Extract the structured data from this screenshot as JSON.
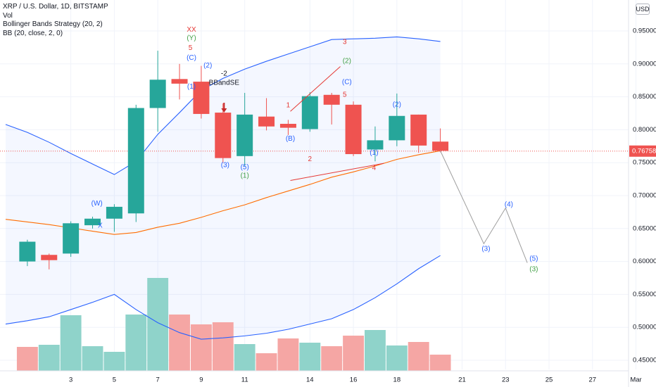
{
  "legend": {
    "symbol": "XRP / U.S. Dollar, 1D, BITSTAMP",
    "vol": "Vol",
    "strategy": "Bollinger Bands Strategy (20, 2)",
    "bb": "BB (20, close, 2, 0)"
  },
  "currency_button": "USD",
  "colors": {
    "up": "#26a69a",
    "down": "#ef5350",
    "vol_up": "#8fd3ca",
    "vol_down": "#f5a6a4",
    "band": "#2962ff",
    "basis": "#ff6d00",
    "wave_blue": "#2962ff",
    "wave_green": "#43a047",
    "wave_red": "#e53935",
    "projection": "#9e9e9e"
  },
  "chart_data": {
    "type": "candlestick",
    "y_range": [
      0.44,
      0.98
    ],
    "y_ticks": [
      "0.95000",
      "0.90000",
      "0.85000",
      "0.80000",
      "0.75000",
      "0.70000",
      "0.65000",
      "0.60000",
      "0.55000",
      "0.50000",
      "0.45000"
    ],
    "y_tick_values": [
      0.95,
      0.9,
      0.85,
      0.8,
      0.75,
      0.7,
      0.65,
      0.6,
      0.55,
      0.5,
      0.45
    ],
    "x_ticks": [
      {
        "label": "3",
        "day": 3
      },
      {
        "label": "5",
        "day": 5
      },
      {
        "label": "7",
        "day": 7
      },
      {
        "label": "9",
        "day": 9
      },
      {
        "label": "11",
        "day": 11
      },
      {
        "label": "14",
        "day": 14
      },
      {
        "label": "16",
        "day": 16
      },
      {
        "label": "18",
        "day": 18
      },
      {
        "label": "21",
        "day": 21
      },
      {
        "label": "23",
        "day": 23
      },
      {
        "label": "25",
        "day": 25
      },
      {
        "label": "27",
        "day": 27
      },
      {
        "label": "Mar",
        "day": 29
      }
    ],
    "last_price": 0.76758,
    "last_price_label": "0.76758",
    "candles": [
      {
        "day": 1,
        "o": 0.6,
        "h": 0.633,
        "l": 0.593,
        "c": 0.63
      },
      {
        "day": 2,
        "o": 0.61,
        "h": 0.612,
        "l": 0.588,
        "c": 0.602
      },
      {
        "day": 3,
        "o": 0.612,
        "h": 0.661,
        "l": 0.607,
        "c": 0.658
      },
      {
        "day": 4,
        "o": 0.655,
        "h": 0.668,
        "l": 0.65,
        "c": 0.665
      },
      {
        "day": 5,
        "o": 0.665,
        "h": 0.687,
        "l": 0.645,
        "c": 0.683
      },
      {
        "day": 6,
        "o": 0.673,
        "h": 0.838,
        "l": 0.66,
        "c": 0.833
      },
      {
        "day": 7,
        "o": 0.833,
        "h": 0.92,
        "l": 0.797,
        "c": 0.876
      },
      {
        "day": 8,
        "o": 0.877,
        "h": 0.9,
        "l": 0.846,
        "c": 0.87
      },
      {
        "day": 9,
        "o": 0.873,
        "h": 0.897,
        "l": 0.817,
        "c": 0.824
      },
      {
        "day": 10,
        "o": 0.826,
        "h": 0.84,
        "l": 0.75,
        "c": 0.757
      },
      {
        "day": 11,
        "o": 0.76,
        "h": 0.856,
        "l": 0.745,
        "c": 0.823
      },
      {
        "day": 12,
        "o": 0.82,
        "h": 0.848,
        "l": 0.799,
        "c": 0.805
      },
      {
        "day": 13,
        "o": 0.809,
        "h": 0.815,
        "l": 0.792,
        "c": 0.803
      },
      {
        "day": 14,
        "o": 0.801,
        "h": 0.857,
        "l": 0.797,
        "c": 0.851
      },
      {
        "day": 15,
        "o": 0.853,
        "h": 0.856,
        "l": 0.808,
        "c": 0.838
      },
      {
        "day": 16,
        "o": 0.838,
        "h": 0.843,
        "l": 0.76,
        "c": 0.763
      },
      {
        "day": 17,
        "o": 0.77,
        "h": 0.805,
        "l": 0.752,
        "c": 0.784
      },
      {
        "day": 18,
        "o": 0.784,
        "h": 0.855,
        "l": 0.775,
        "c": 0.821
      },
      {
        "day": 19,
        "o": 0.823,
        "h": 0.823,
        "l": 0.765,
        "c": 0.776
      },
      {
        "day": 20,
        "o": 0.782,
        "h": 0.802,
        "l": 0.766,
        "c": 0.768
      }
    ],
    "volume": [
      {
        "day": 1,
        "v": 34,
        "dir": "down"
      },
      {
        "day": 2,
        "v": 37,
        "dir": "up"
      },
      {
        "day": 3,
        "v": 79,
        "dir": "up"
      },
      {
        "day": 4,
        "v": 35,
        "dir": "up"
      },
      {
        "day": 5,
        "v": 27,
        "dir": "up"
      },
      {
        "day": 6,
        "v": 80,
        "dir": "up"
      },
      {
        "day": 7,
        "v": 132,
        "dir": "up"
      },
      {
        "day": 8,
        "v": 80,
        "dir": "down"
      },
      {
        "day": 9,
        "v": 66,
        "dir": "down"
      },
      {
        "day": 10,
        "v": 69,
        "dir": "down"
      },
      {
        "day": 11,
        "v": 38,
        "dir": "up"
      },
      {
        "day": 12,
        "v": 25,
        "dir": "down"
      },
      {
        "day": 13,
        "v": 46,
        "dir": "down"
      },
      {
        "day": 14,
        "v": 40,
        "dir": "up"
      },
      {
        "day": 15,
        "v": 35,
        "dir": "down"
      },
      {
        "day": 16,
        "v": 50,
        "dir": "down"
      },
      {
        "day": 17,
        "v": 58,
        "dir": "up"
      },
      {
        "day": 18,
        "v": 36,
        "dir": "up"
      },
      {
        "day": 19,
        "v": 41,
        "dir": "down"
      },
      {
        "day": 20,
        "v": 23,
        "dir": "down"
      }
    ],
    "bb_upper": [
      {
        "day": 0,
        "y": 0.808
      },
      {
        "day": 1,
        "y": 0.796
      },
      {
        "day": 2,
        "y": 0.781
      },
      {
        "day": 3,
        "y": 0.764
      },
      {
        "day": 4,
        "y": 0.748
      },
      {
        "day": 5,
        "y": 0.732
      },
      {
        "day": 6,
        "y": 0.752
      },
      {
        "day": 7,
        "y": 0.793
      },
      {
        "day": 8,
        "y": 0.826
      },
      {
        "day": 9,
        "y": 0.86
      },
      {
        "day": 10,
        "y": 0.878
      },
      {
        "day": 11,
        "y": 0.892
      },
      {
        "day": 12,
        "y": 0.904
      },
      {
        "day": 13,
        "y": 0.915
      },
      {
        "day": 14,
        "y": 0.926
      },
      {
        "day": 15,
        "y": 0.937
      },
      {
        "day": 16,
        "y": 0.938
      },
      {
        "day": 17,
        "y": 0.939
      },
      {
        "day": 18,
        "y": 0.941
      },
      {
        "day": 19,
        "y": 0.938
      },
      {
        "day": 20,
        "y": 0.934
      }
    ],
    "bb_basis": [
      {
        "day": 0,
        "y": 0.664
      },
      {
        "day": 1,
        "y": 0.66
      },
      {
        "day": 2,
        "y": 0.656
      },
      {
        "day": 3,
        "y": 0.651
      },
      {
        "day": 4,
        "y": 0.646
      },
      {
        "day": 5,
        "y": 0.641
      },
      {
        "day": 6,
        "y": 0.644
      },
      {
        "day": 7,
        "y": 0.652
      },
      {
        "day": 8,
        "y": 0.658
      },
      {
        "day": 9,
        "y": 0.667
      },
      {
        "day": 10,
        "y": 0.677
      },
      {
        "day": 11,
        "y": 0.686
      },
      {
        "day": 12,
        "y": 0.697
      },
      {
        "day": 13,
        "y": 0.707
      },
      {
        "day": 14,
        "y": 0.717
      },
      {
        "day": 15,
        "y": 0.728
      },
      {
        "day": 16,
        "y": 0.736
      },
      {
        "day": 17,
        "y": 0.745
      },
      {
        "day": 18,
        "y": 0.755
      },
      {
        "day": 19,
        "y": 0.762
      },
      {
        "day": 20,
        "y": 0.768
      }
    ],
    "bb_lower": [
      {
        "day": 0,
        "y": 0.505
      },
      {
        "day": 1,
        "y": 0.51
      },
      {
        "day": 2,
        "y": 0.516
      },
      {
        "day": 3,
        "y": 0.527
      },
      {
        "day": 4,
        "y": 0.538
      },
      {
        "day": 5,
        "y": 0.55
      },
      {
        "day": 6,
        "y": 0.527
      },
      {
        "day": 7,
        "y": 0.507
      },
      {
        "day": 8,
        "y": 0.492
      },
      {
        "day": 9,
        "y": 0.482
      },
      {
        "day": 10,
        "y": 0.484
      },
      {
        "day": 11,
        "y": 0.487
      },
      {
        "day": 12,
        "y": 0.491
      },
      {
        "day": 13,
        "y": 0.497
      },
      {
        "day": 14,
        "y": 0.505
      },
      {
        "day": 15,
        "y": 0.513
      },
      {
        "day": 16,
        "y": 0.527
      },
      {
        "day": 17,
        "y": 0.545
      },
      {
        "day": 18,
        "y": 0.566
      },
      {
        "day": 19,
        "y": 0.589
      },
      {
        "day": 20,
        "y": 0.609
      }
    ],
    "projection": [
      {
        "day": 20,
        "y": 0.768
      },
      {
        "day": 22,
        "y": 0.627
      },
      {
        "day": 23,
        "y": 0.681
      },
      {
        "day": 24,
        "y": 0.598
      }
    ],
    "wave_lines": [
      {
        "color": "red",
        "points": [
          {
            "day": 13.1,
            "y": 0.828
          },
          {
            "day": 15.4,
            "y": 0.896
          }
        ]
      },
      {
        "color": "red",
        "points": [
          {
            "day": 13.1,
            "y": 0.723
          },
          {
            "day": 17.4,
            "y": 0.749
          }
        ]
      }
    ],
    "annotations": [
      {
        "text": "XX",
        "day": 8.55,
        "y": 0.952,
        "color": "red"
      },
      {
        "text": "(Y)",
        "day": 8.55,
        "y": 0.939,
        "color": "green"
      },
      {
        "text": "5",
        "day": 8.5,
        "y": 0.924,
        "color": "red"
      },
      {
        "text": "(C)",
        "day": 8.55,
        "y": 0.909,
        "color": "blue"
      },
      {
        "text": "(1)",
        "day": 8.55,
        "y": 0.865,
        "color": "blue"
      },
      {
        "text": "(2)",
        "day": 9.3,
        "y": 0.897,
        "color": "blue"
      },
      {
        "text": "-2",
        "day": 10.05,
        "y": 0.885,
        "color": "black"
      },
      {
        "text": "BBandSE",
        "day": 10.05,
        "y": 0.871,
        "color": "black"
      },
      {
        "text": "(3)",
        "day": 10.1,
        "y": 0.746,
        "color": "blue"
      },
      {
        "text": "(5)",
        "day": 11.0,
        "y": 0.743,
        "color": "blue"
      },
      {
        "text": "(1)",
        "day": 11.0,
        "y": 0.73,
        "color": "green"
      },
      {
        "text": "1",
        "day": 13.0,
        "y": 0.837,
        "color": "red"
      },
      {
        "text": "(B)",
        "day": 13.1,
        "y": 0.786,
        "color": "blue"
      },
      {
        "text": "2",
        "day": 14.0,
        "y": 0.755,
        "color": "red"
      },
      {
        "text": "3",
        "day": 15.6,
        "y": 0.933,
        "color": "red"
      },
      {
        "text": "(2)",
        "day": 15.7,
        "y": 0.904,
        "color": "green"
      },
      {
        "text": "(C)",
        "day": 15.7,
        "y": 0.872,
        "color": "blue"
      },
      {
        "text": "5",
        "day": 15.6,
        "y": 0.853,
        "color": "red"
      },
      {
        "text": "(1)",
        "day": 16.95,
        "y": 0.765,
        "color": "blue"
      },
      {
        "text": "4",
        "day": 16.95,
        "y": 0.742,
        "color": "red"
      },
      {
        "text": "(2)",
        "day": 18.0,
        "y": 0.838,
        "color": "blue"
      },
      {
        "text": "(W)",
        "day": 4.2,
        "y": 0.688,
        "color": "blue"
      },
      {
        "text": "X",
        "day": 4.35,
        "y": 0.654,
        "color": "blue"
      },
      {
        "text": "(3)",
        "day": 22.1,
        "y": 0.619,
        "color": "blue"
      },
      {
        "text": "(4)",
        "day": 23.15,
        "y": 0.686,
        "color": "blue"
      },
      {
        "text": "(5)",
        "day": 24.3,
        "y": 0.604,
        "color": "blue"
      },
      {
        "text": "(3)",
        "day": 24.3,
        "y": 0.588,
        "color": "green"
      }
    ]
  }
}
